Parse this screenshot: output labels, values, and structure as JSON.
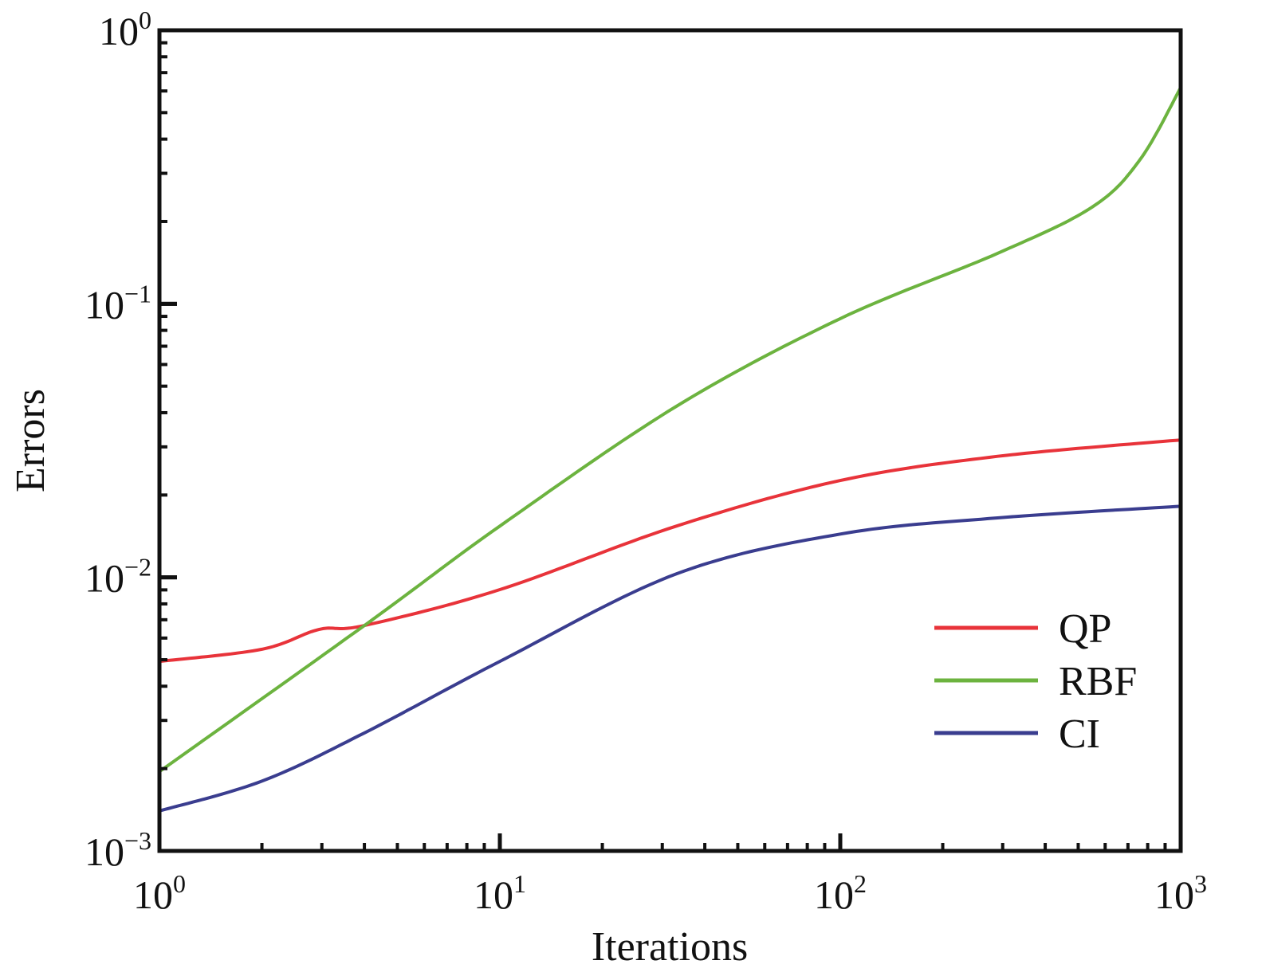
{
  "chart_data": {
    "type": "line",
    "title": "",
    "xlabel": "Iterations",
    "ylabel": "Errors",
    "xscale": "log",
    "yscale": "log",
    "xlim": [
      1,
      1000
    ],
    "ylim": [
      0.001,
      1
    ],
    "x_ticks": [
      {
        "base": "10",
        "exp": "0"
      },
      {
        "base": "10",
        "exp": "1"
      },
      {
        "base": "10",
        "exp": "2"
      },
      {
        "base": "10",
        "exp": "3"
      }
    ],
    "y_ticks": [
      {
        "base": "10",
        "exp": "0"
      },
      {
        "base": "10",
        "exp": "−1"
      },
      {
        "base": "10",
        "exp": "−2"
      },
      {
        "base": "10",
        "exp": "−3"
      }
    ],
    "grid": false,
    "legend_position": "bottom-right",
    "series": [
      {
        "name": "QP",
        "color": "#e8333a",
        "x": [
          1,
          2,
          2.94,
          4,
          10,
          33,
          100,
          290,
          1000
        ],
        "y": [
          0.00493,
          0.00546,
          0.00645,
          0.00667,
          0.00902,
          0.0154,
          0.0226,
          0.0277,
          0.0318
        ]
      },
      {
        "name": "RBF",
        "color": "#6cb33f",
        "x": [
          1,
          4,
          10,
          33,
          100,
          290,
          550,
          760,
          1000
        ],
        "y": [
          0.00195,
          0.00667,
          0.0154,
          0.0422,
          0.0883,
          0.153,
          0.226,
          0.337,
          0.617
        ]
      },
      {
        "name": "CI",
        "color": "#3a3d8f",
        "x": [
          1,
          2,
          4,
          10,
          33,
          100,
          290,
          1000
        ],
        "y": [
          0.0014,
          0.0018,
          0.0027,
          0.00493,
          0.0103,
          0.0144,
          0.0165,
          0.0182
        ]
      }
    ]
  }
}
